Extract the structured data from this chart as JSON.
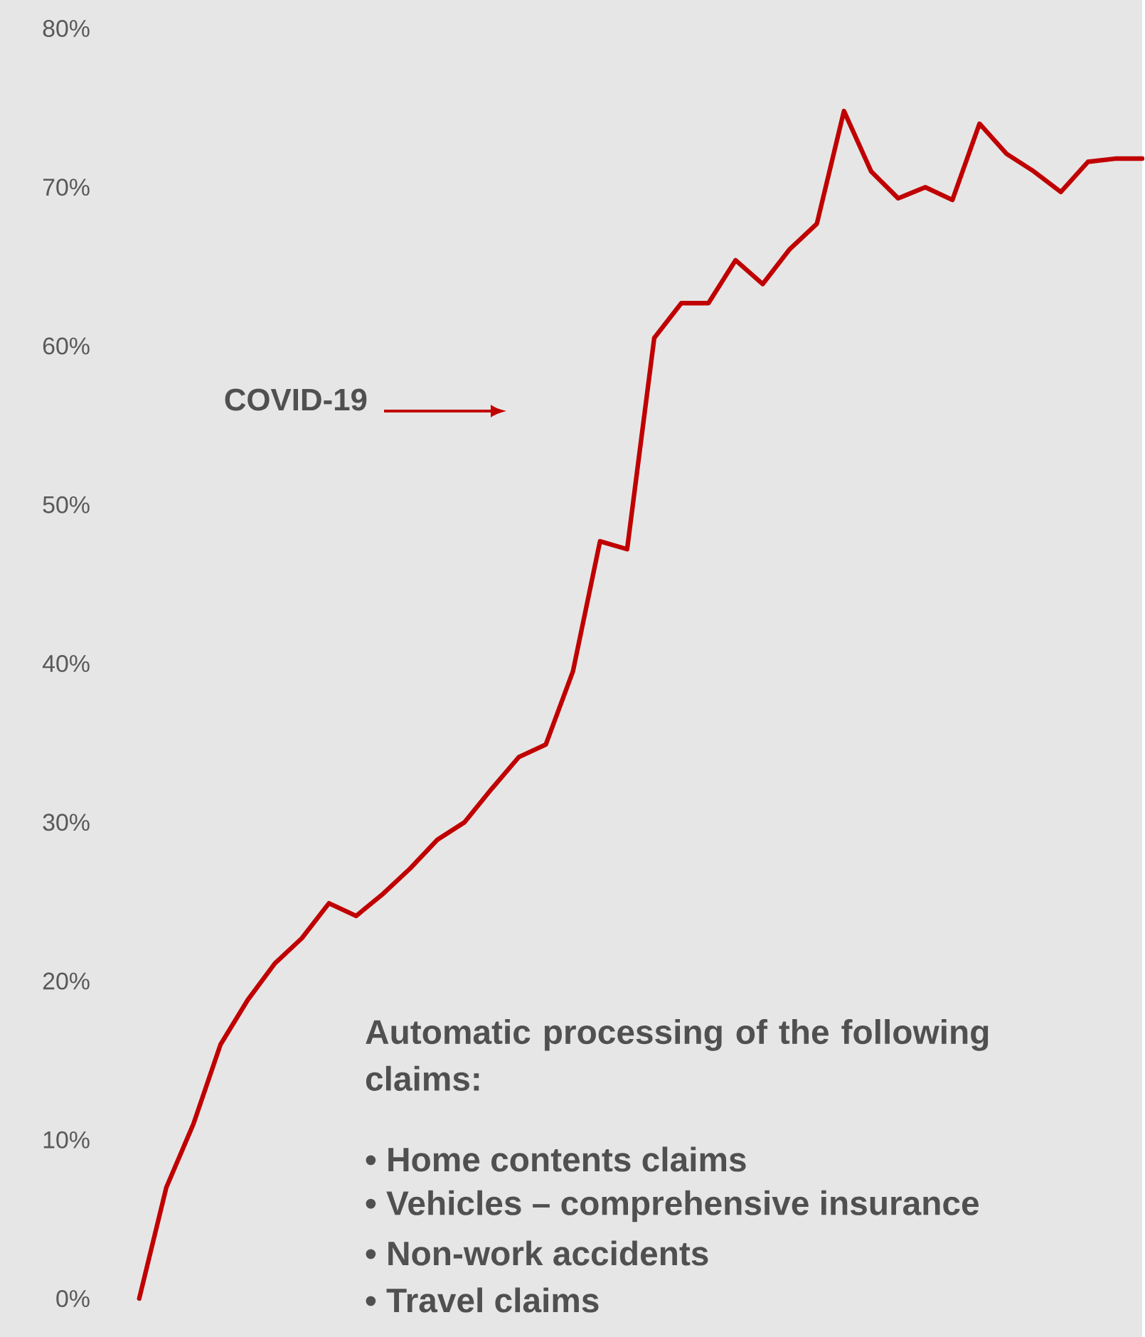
{
  "chart_data": {
    "type": "line",
    "color": "#c00000",
    "categories": [
      null,
      null,
      null,
      null,
      null,
      null,
      null,
      null,
      null,
      null,
      null,
      null,
      null,
      null,
      null,
      null,
      null,
      null,
      null,
      null,
      null,
      null,
      null,
      null,
      null,
      null,
      null,
      null,
      null,
      null,
      null,
      null,
      null,
      null,
      null,
      null,
      null,
      null
    ],
    "values": [
      0,
      7.0,
      11.0,
      16.0,
      18.8,
      21.1,
      22.7,
      24.9,
      24.1,
      25.5,
      27.1,
      28.9,
      30.0,
      32.1,
      34.1,
      34.9,
      39.5,
      47.7,
      47.2,
      60.5,
      62.7,
      62.7,
      65.4,
      63.9,
      66.1,
      67.7,
      74.8,
      71.0,
      69.3,
      70.0,
      69.2,
      74.0,
      72.1,
      71.0,
      69.7,
      71.6,
      71.8,
      71.8
    ],
    "ylim": [
      0,
      80
    ],
    "yticks": [
      {
        "value": 0,
        "label": "0%"
      },
      {
        "value": 10,
        "label": "10%"
      },
      {
        "value": 20,
        "label": "20%"
      },
      {
        "value": 30,
        "label": "30%"
      },
      {
        "value": 40,
        "label": "40%"
      },
      {
        "value": 50,
        "label": "50%"
      },
      {
        "value": 60,
        "label": "60%"
      },
      {
        "value": 70,
        "label": "70%"
      },
      {
        "value": 80,
        "label": "80%"
      }
    ],
    "annotations": [
      "COVID-19",
      "Automatic processing of the following claims:",
      "• Home contents claims",
      "• Vehicles – comprehensive insurance",
      "• Non-work accidents",
      "• Travel claims"
    ]
  }
}
